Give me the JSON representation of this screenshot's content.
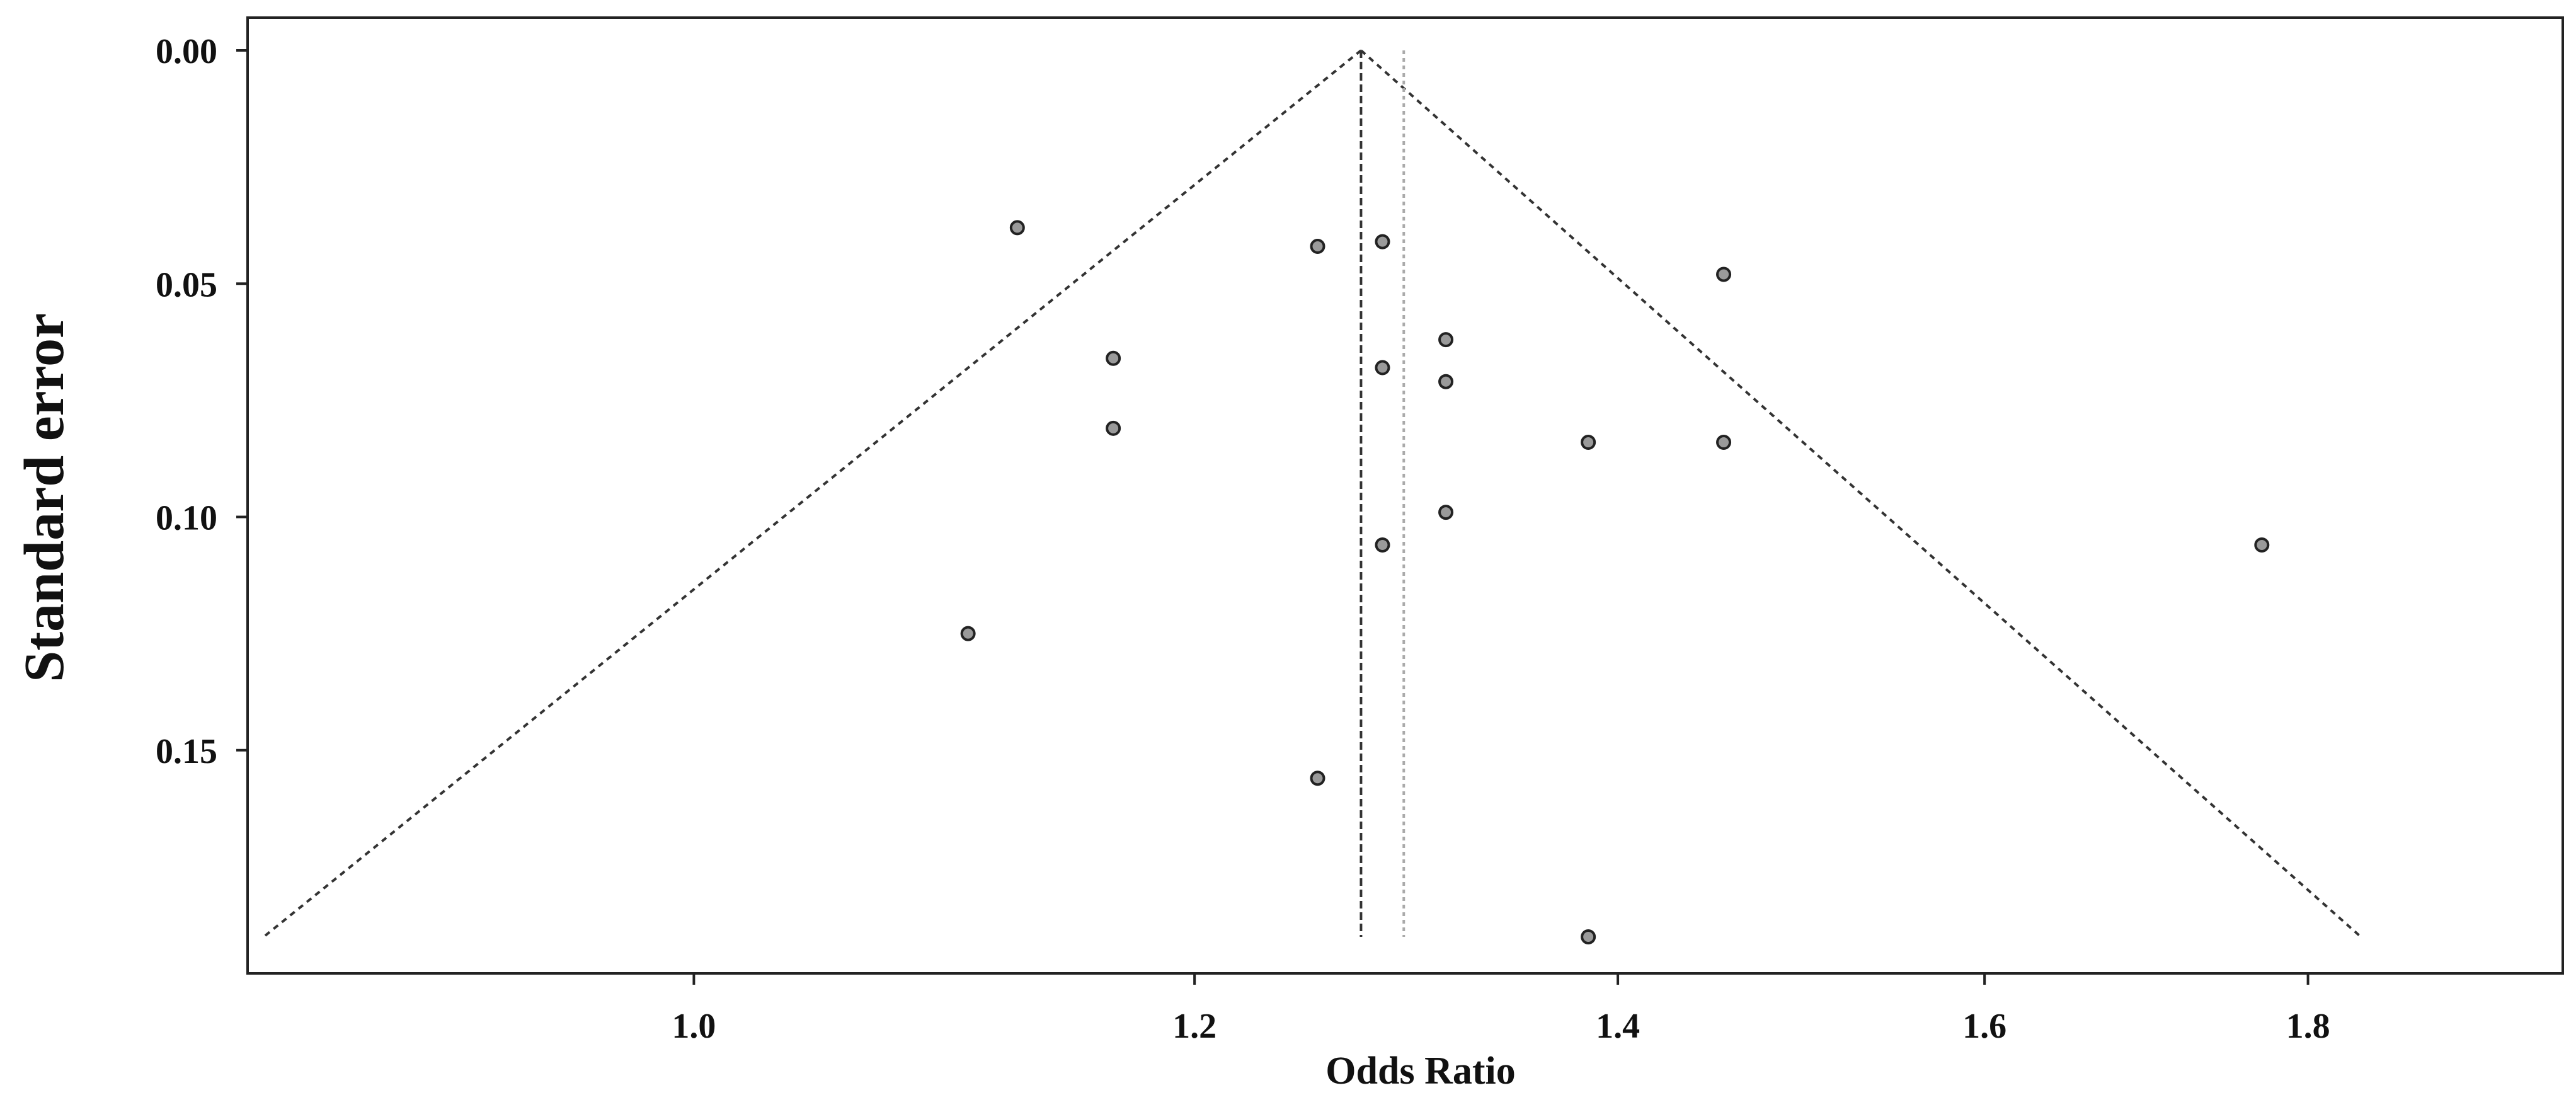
{
  "chart_data": {
    "type": "scatter",
    "subtype": "funnel-plot",
    "title": "",
    "xlabel": "Odds Ratio",
    "ylabel": "Standard error",
    "x_ticks": [
      "1.0",
      "1.2",
      "1.4",
      "1.6",
      "1.8"
    ],
    "y_ticks": [
      "0.00",
      "0.05",
      "0.10",
      "0.15"
    ],
    "xlim": [
      0.85,
      1.975
    ],
    "ylim": [
      0.0,
      0.21
    ],
    "y_inverted": true,
    "x_scale": "log",
    "grid": false,
    "legend": "none",
    "pooled_estimate": 1.275,
    "adjusted_estimate": 1.295,
    "funnel_apex_se": 0.0,
    "funnel_bottom_se": 0.19,
    "funnel_bottom_left_or": 0.855,
    "funnel_bottom_right_or": 1.835,
    "points": [
      {
        "x": 1.125,
        "y": 0.038
      },
      {
        "x": 1.255,
        "y": 0.042
      },
      {
        "x": 1.285,
        "y": 0.041
      },
      {
        "x": 1.455,
        "y": 0.048
      },
      {
        "x": 1.165,
        "y": 0.066
      },
      {
        "x": 1.315,
        "y": 0.062
      },
      {
        "x": 1.285,
        "y": 0.068
      },
      {
        "x": 1.315,
        "y": 0.071
      },
      {
        "x": 1.165,
        "y": 0.081
      },
      {
        "x": 1.385,
        "y": 0.084
      },
      {
        "x": 1.455,
        "y": 0.084
      },
      {
        "x": 1.315,
        "y": 0.099
      },
      {
        "x": 1.285,
        "y": 0.106
      },
      {
        "x": 1.77,
        "y": 0.106
      },
      {
        "x": 1.105,
        "y": 0.125
      },
      {
        "x": 1.255,
        "y": 0.156
      },
      {
        "x": 1.385,
        "y": 0.19
      }
    ],
    "colors": {
      "point_fill": "#9a9a9a",
      "point_stroke": "#222222",
      "line": "#333333",
      "adjusted_line": "#aaaaaa"
    }
  }
}
